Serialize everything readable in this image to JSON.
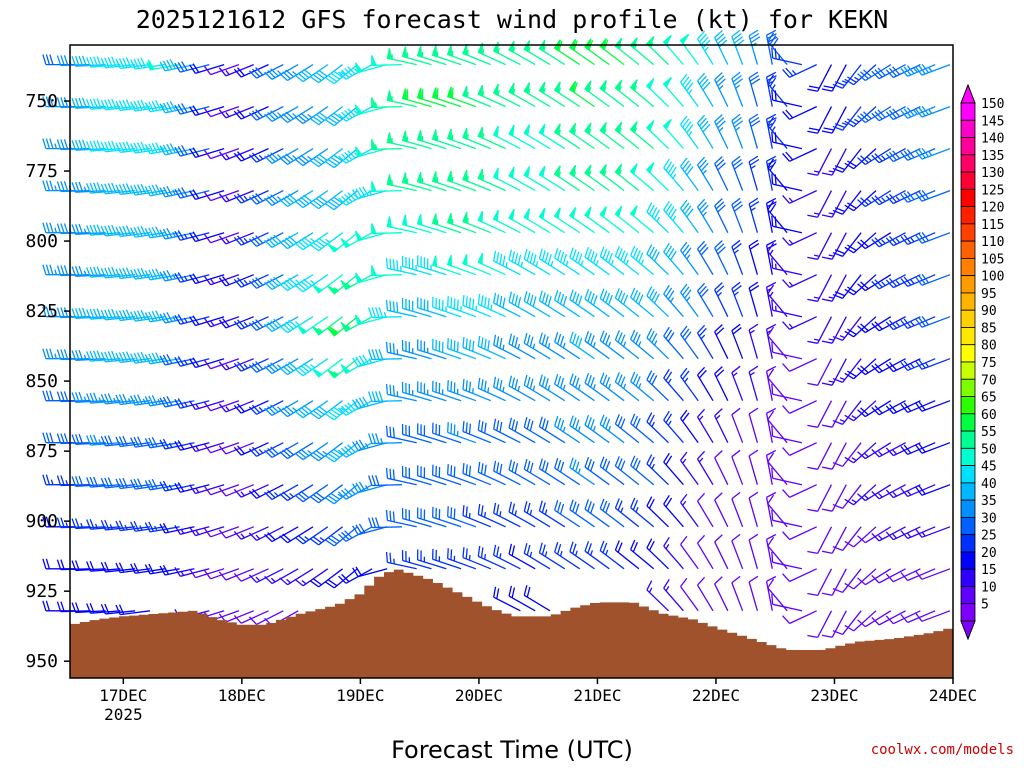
{
  "chart_data": {
    "type": "wind-barb-profile",
    "title": "2025121612 GFS forecast wind profile (kt) for KEKN",
    "xlabel": "Forecast Time (UTC)",
    "ylabel": "",
    "x_tick_labels": [
      "17DEC",
      "18DEC",
      "19DEC",
      "20DEC",
      "21DEC",
      "22DEC",
      "23DEC",
      "24DEC"
    ],
    "x_year_label": "2025",
    "x_range_days": [
      16.55,
      24.0
    ],
    "y_tick_labels": [
      "750",
      "775",
      "800",
      "825",
      "850",
      "875",
      "900",
      "925",
      "950"
    ],
    "y_range_hpa": [
      730,
      956
    ],
    "barb_levels_hpa": [
      737,
      752,
      767,
      782,
      797,
      812,
      827,
      842,
      857,
      872,
      887,
      902,
      917,
      932
    ],
    "colorbar_labels": [
      "150",
      "145",
      "140",
      "135",
      "130",
      "125",
      "120",
      "115",
      "110",
      "105",
      "100",
      "95",
      "90",
      "85",
      "80",
      "75",
      "70",
      "65",
      "60",
      "55",
      "50",
      "45",
      "40",
      "35",
      "30",
      "25",
      "20",
      "15",
      "10",
      "5"
    ],
    "colorbar_colors": [
      "#ff00ff",
      "#ff00cc",
      "#ff0099",
      "#ff0066",
      "#ff0033",
      "#ff0000",
      "#ff2000",
      "#ff4000",
      "#ff6000",
      "#ff8000",
      "#ff9a00",
      "#ffb400",
      "#ffd000",
      "#ffe800",
      "#ffff00",
      "#c8ff00",
      "#7dff00",
      "#2cff00",
      "#00ff40",
      "#00ff90",
      "#00ffd0",
      "#00e0ff",
      "#00b8ff",
      "#0090ff",
      "#0060ff",
      "#0030ff",
      "#0000ff",
      "#3000ff",
      "#6000ff",
      "#8000ff"
    ],
    "speed_by_time": [
      {
        "day": 16.6,
        "speeds_kt": [
          32,
          33,
          33,
          33,
          33,
          33,
          35,
          33,
          30,
          28,
          25,
          22,
          20,
          18
        ],
        "dir_deg": 270
      },
      {
        "day": 17.0,
        "speeds_kt": [
          45,
          45,
          45,
          40,
          40,
          40,
          40,
          40,
          35,
          33,
          30,
          25,
          22,
          20
        ],
        "dir_deg": 265
      },
      {
        "day": 17.5,
        "speeds_kt": [
          48,
          45,
          45,
          42,
          40,
          40,
          38,
          38,
          35,
          30,
          28,
          25,
          20,
          15
        ],
        "dir_deg": 260
      },
      {
        "day": 18.0,
        "speeds_kt": [
          10,
          10,
          8,
          10,
          10,
          12,
          12,
          10,
          8,
          8,
          8,
          8,
          8,
          10
        ],
        "dir_deg": 250
      },
      {
        "day": 18.5,
        "speeds_kt": [
          35,
          35,
          35,
          38,
          40,
          40,
          40,
          38,
          35,
          30,
          25,
          20,
          15,
          10
        ],
        "dir_deg": 240
      },
      {
        "day": 19.0,
        "speeds_kt": [
          45,
          40,
          40,
          40,
          50,
          55,
          60,
          55,
          45,
          40,
          35,
          30,
          20,
          15
        ],
        "dir_deg": 230
      },
      {
        "day": 19.5,
        "speeds_kt": [
          55,
          58,
          58,
          55,
          50,
          45,
          40,
          35,
          35,
          30,
          30,
          28,
          25,
          20
        ],
        "dir_deg": 285
      },
      {
        "day": 20.0,
        "speeds_kt": [
          55,
          58,
          55,
          55,
          55,
          50,
          45,
          40,
          35,
          33,
          30,
          28,
          25,
          20
        ],
        "dir_deg": 290
      },
      {
        "day": 20.5,
        "speeds_kt": [
          55,
          55,
          50,
          50,
          48,
          45,
          40,
          35,
          33,
          30,
          28,
          25,
          22,
          20
        ],
        "dir_deg": 300
      },
      {
        "day": 21.0,
        "speeds_kt": [
          60,
          58,
          55,
          55,
          50,
          45,
          40,
          38,
          35,
          35,
          33,
          30,
          25,
          20
        ],
        "dir_deg": 305
      },
      {
        "day": 21.5,
        "speeds_kt": [
          55,
          55,
          55,
          52,
          50,
          45,
          40,
          35,
          33,
          30,
          28,
          25,
          20,
          18
        ],
        "dir_deg": 310
      },
      {
        "day": 22.0,
        "speeds_kt": [
          45,
          40,
          40,
          35,
          35,
          30,
          30,
          25,
          20,
          15,
          12,
          10,
          8,
          8
        ],
        "dir_deg": 330
      },
      {
        "day": 22.5,
        "speeds_kt": [
          30,
          25,
          25,
          22,
          20,
          18,
          15,
          12,
          10,
          8,
          8,
          8,
          8,
          8
        ],
        "dir_deg": 350
      },
      {
        "day": 23.0,
        "speeds_kt": [
          20,
          18,
          15,
          15,
          15,
          15,
          15,
          12,
          10,
          10,
          10,
          10,
          10,
          10
        ],
        "dir_deg": 200
      },
      {
        "day": 23.5,
        "speeds_kt": [
          30,
          28,
          25,
          25,
          22,
          22,
          20,
          20,
          18,
          15,
          15,
          12,
          12,
          10
        ],
        "dir_deg": 240
      },
      {
        "day": 24.0,
        "speeds_kt": [
          35,
          35,
          33,
          30,
          28,
          28,
          28,
          25,
          22,
          20,
          18,
          15,
          12,
          10
        ],
        "dir_deg": 250
      }
    ],
    "terrain_hpa": [
      {
        "day": 16.55,
        "p": 937
      },
      {
        "day": 16.8,
        "p": 935
      },
      {
        "day": 17.0,
        "p": 934
      },
      {
        "day": 17.3,
        "p": 933
      },
      {
        "day": 17.6,
        "p": 932
      },
      {
        "day": 17.8,
        "p": 935
      },
      {
        "day": 18.0,
        "p": 937
      },
      {
        "day": 18.2,
        "p": 937
      },
      {
        "day": 18.5,
        "p": 933
      },
      {
        "day": 18.8,
        "p": 930
      },
      {
        "day": 19.0,
        "p": 926
      },
      {
        "day": 19.15,
        "p": 920
      },
      {
        "day": 19.3,
        "p": 917
      },
      {
        "day": 19.6,
        "p": 921
      },
      {
        "day": 19.85,
        "p": 926
      },
      {
        "day": 20.1,
        "p": 931
      },
      {
        "day": 20.3,
        "p": 934
      },
      {
        "day": 20.6,
        "p": 934
      },
      {
        "day": 20.8,
        "p": 931
      },
      {
        "day": 21.0,
        "p": 929
      },
      {
        "day": 21.3,
        "p": 929
      },
      {
        "day": 21.55,
        "p": 933
      },
      {
        "day": 21.8,
        "p": 935
      },
      {
        "day": 22.0,
        "p": 938
      },
      {
        "day": 22.3,
        "p": 942
      },
      {
        "day": 22.6,
        "p": 946
      },
      {
        "day": 22.9,
        "p": 946
      },
      {
        "day": 23.2,
        "p": 943
      },
      {
        "day": 23.5,
        "p": 942
      },
      {
        "day": 23.8,
        "p": 940
      },
      {
        "day": 24.0,
        "p": 938
      }
    ],
    "terrain_color": "#a0522d"
  },
  "credit": "coolwx.com/models"
}
